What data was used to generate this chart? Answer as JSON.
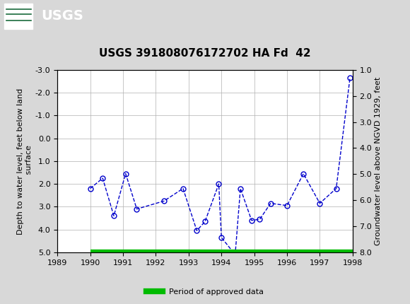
{
  "title": "USGS 391808076172702 HA Fd  42",
  "ylabel_left": "Depth to water level, feet below land\n surface",
  "ylabel_right": "Groundwater level above NGVD 1929, feet",
  "xlim": [
    1989,
    1998
  ],
  "ylim_left_bottom": 5.0,
  "ylim_left_top": -3.0,
  "yticks_left": [
    -3.0,
    -2.0,
    -1.0,
    0.0,
    1.0,
    2.0,
    3.0,
    4.0,
    5.0
  ],
  "yticks_right": [
    1.0,
    2.0,
    3.0,
    4.0,
    5.0,
    6.0,
    7.0,
    8.0
  ],
  "xticks": [
    1989,
    1990,
    1991,
    1992,
    1993,
    1994,
    1995,
    1996,
    1997,
    1998
  ],
  "data_x": [
    1990.0,
    1990.38,
    1990.72,
    1991.08,
    1991.42,
    1992.25,
    1992.83,
    1993.25,
    1993.5,
    1993.92,
    1994.0,
    1994.42,
    1994.58,
    1994.92,
    1995.17,
    1995.5,
    1996.0,
    1996.5,
    1997.0,
    1997.5,
    1997.92
  ],
  "data_y": [
    2.2,
    1.75,
    3.4,
    1.55,
    3.1,
    2.75,
    2.2,
    4.05,
    3.65,
    2.0,
    4.35,
    5.1,
    2.2,
    3.6,
    3.55,
    2.85,
    2.95,
    1.55,
    2.85,
    2.2,
    -2.65
  ],
  "line_color": "#0000cc",
  "marker_color": "#0000cc",
  "green_bar_color": "#00bb00",
  "header_bg_color": "#1a6b3c",
  "header_text_color": "#ffffff",
  "bg_color": "#d8d8d8",
  "plot_bg_color": "#ffffff",
  "grid_color": "#b0b0b0",
  "legend_label": "Period of approved data",
  "title_fontsize": 11,
  "tick_fontsize": 8,
  "label_fontsize": 8
}
